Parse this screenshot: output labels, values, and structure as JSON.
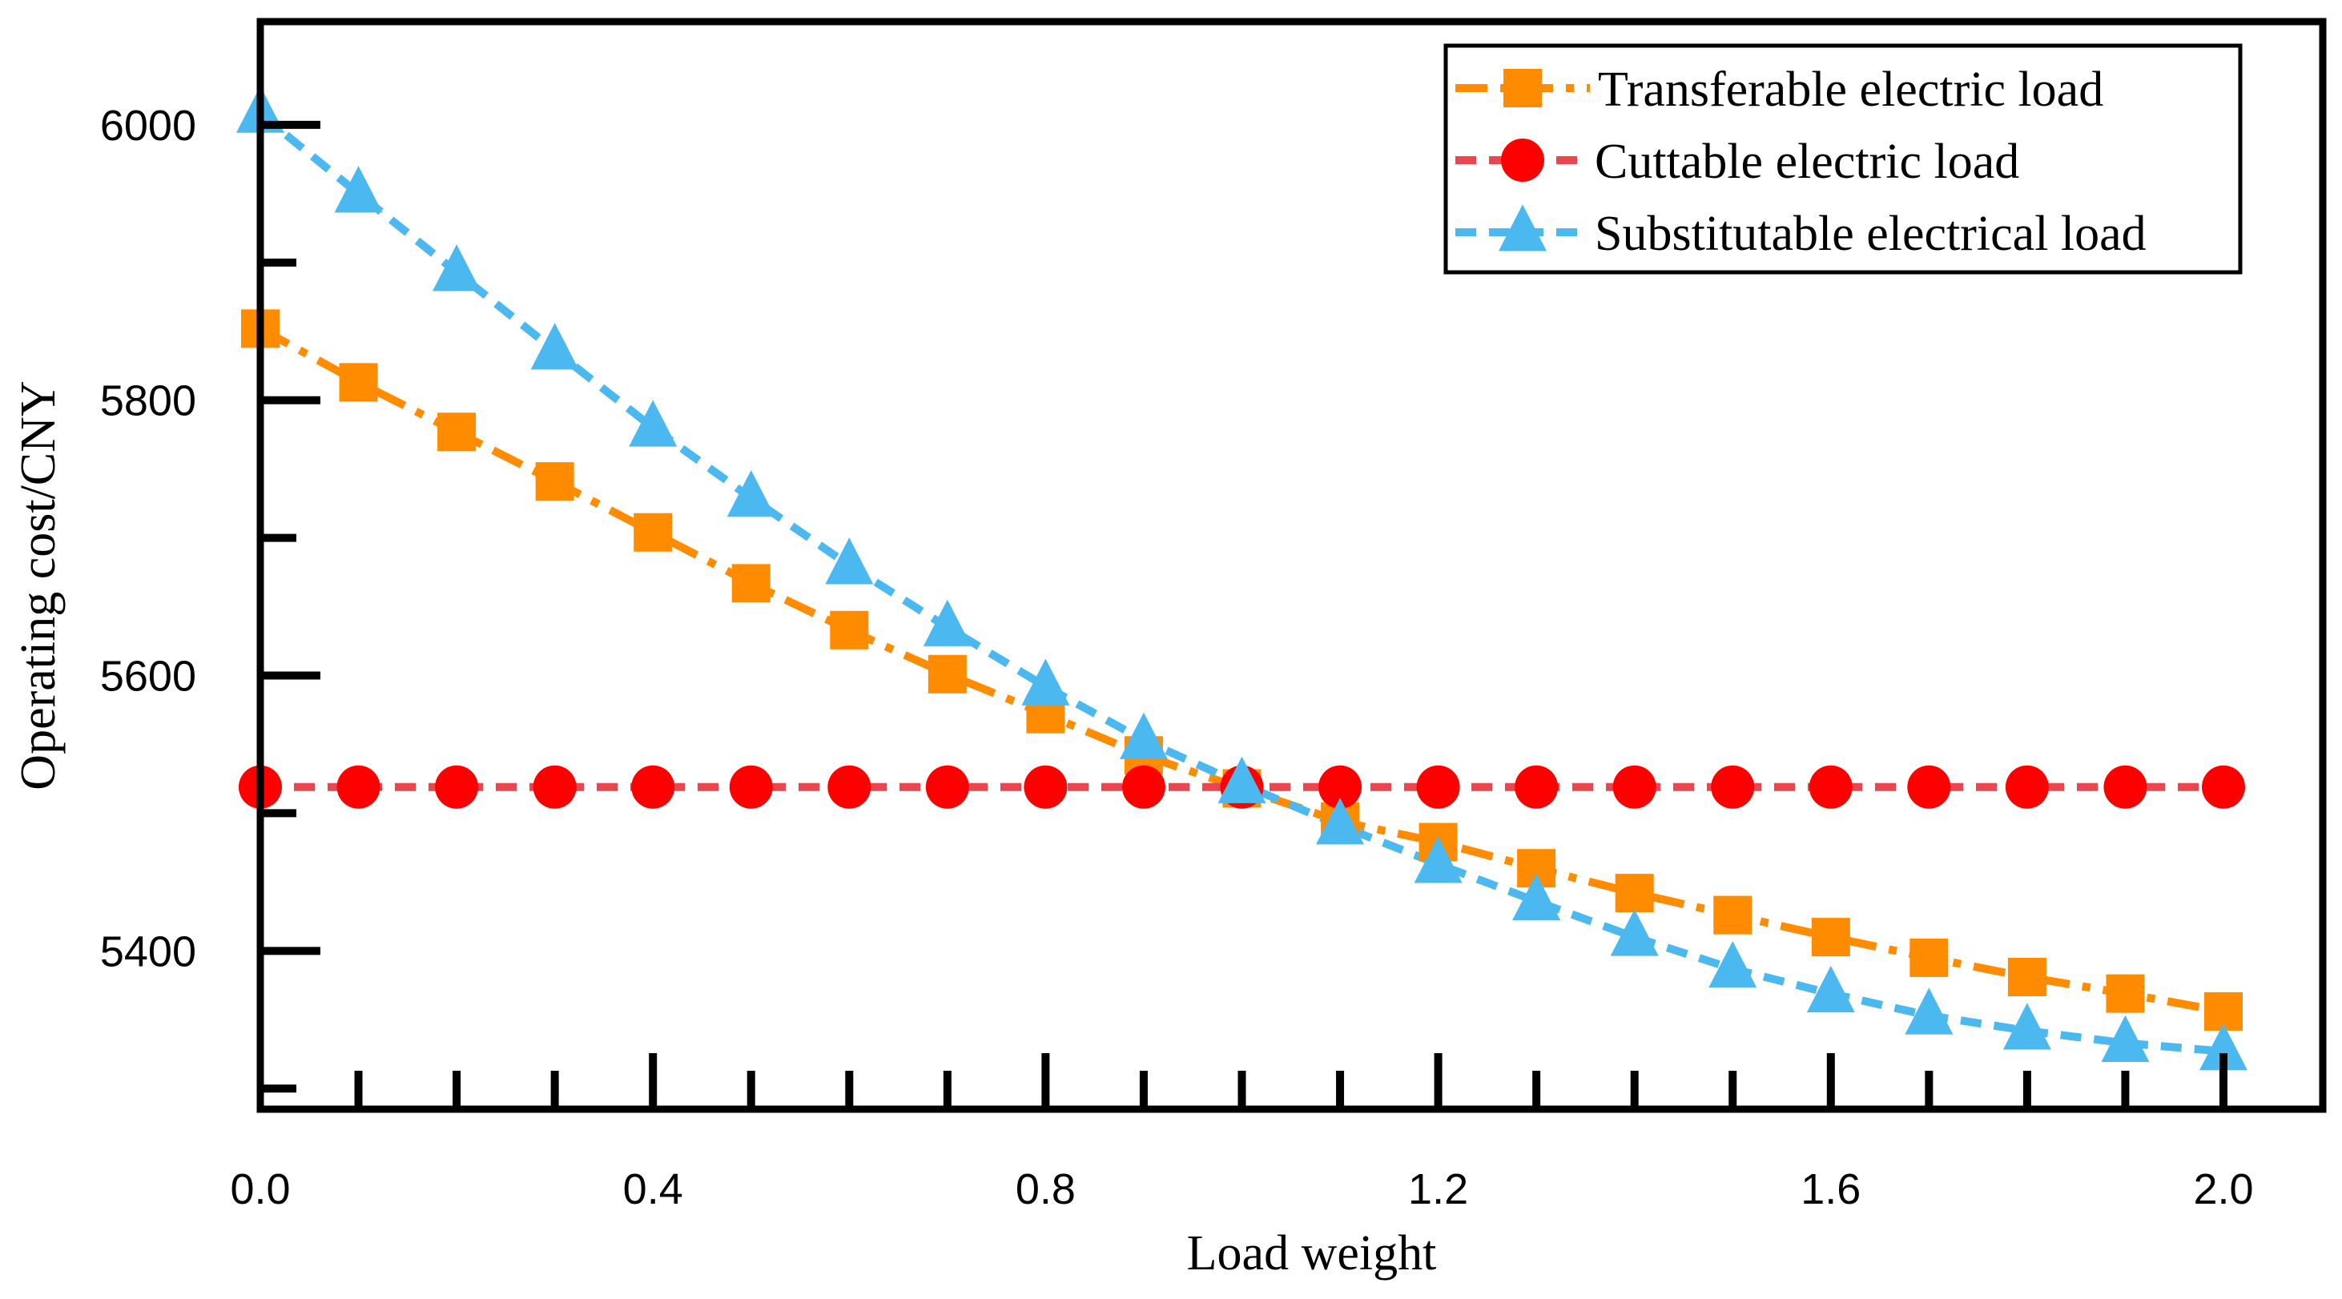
{
  "chart_data": {
    "type": "line",
    "title": "",
    "xlabel": "Load weight",
    "ylabel": "Operating cost/CNY",
    "xlim": [
      0.0,
      2.0
    ],
    "ylim": [
      5285,
      6075
    ],
    "x_ticks": [
      0.0,
      0.4,
      0.8,
      1.2,
      1.6,
      2.0
    ],
    "x_tick_labels": [
      "0.0",
      "0.4",
      "0.8",
      "1.2",
      "1.6",
      "2.0"
    ],
    "y_ticks": [
      5400,
      5600,
      5800,
      6000
    ],
    "y_tick_labels": [
      "5400",
      "5600",
      "5800",
      "6000"
    ],
    "grid": false,
    "legend_position": "top-right",
    "x": [
      0.0,
      0.1,
      0.2,
      0.3,
      0.4,
      0.5,
      0.6,
      0.7,
      0.8,
      0.9,
      1.0,
      1.1,
      1.2,
      1.3,
      1.4,
      1.5,
      1.6,
      1.7,
      1.8,
      1.9,
      2.0
    ],
    "series": [
      {
        "name": "Transferable electric load",
        "color": "#FF8C00",
        "marker": "square",
        "dash": "dashdot",
        "values": [
          5852,
          5813,
          5777,
          5741,
          5704,
          5667,
          5633,
          5601,
          5572,
          5542,
          5518,
          5494,
          5479,
          5460,
          5442,
          5426,
          5410,
          5395,
          5381,
          5369,
          5356
        ]
      },
      {
        "name": "Cuttable electric load",
        "color": "#FF0000",
        "line_color": "#E8474F",
        "marker": "circle",
        "dash": "dashed",
        "values": [
          5519,
          5519,
          5519,
          5519,
          5519,
          5519,
          5519,
          5519,
          5519,
          5519,
          5519,
          5519,
          5519,
          5519,
          5519,
          5519,
          5519,
          5519,
          5519,
          5519,
          5519
        ]
      },
      {
        "name": "Substitutable electrical load",
        "color": "#4BB8F0",
        "marker": "triangle",
        "dash": "dashed",
        "values": [
          6008,
          5950,
          5893,
          5836,
          5780,
          5729,
          5680,
          5635,
          5592,
          5553,
          5521,
          5491,
          5463,
          5436,
          5410,
          5387,
          5369,
          5353,
          5342,
          5333,
          5327
        ]
      }
    ]
  }
}
